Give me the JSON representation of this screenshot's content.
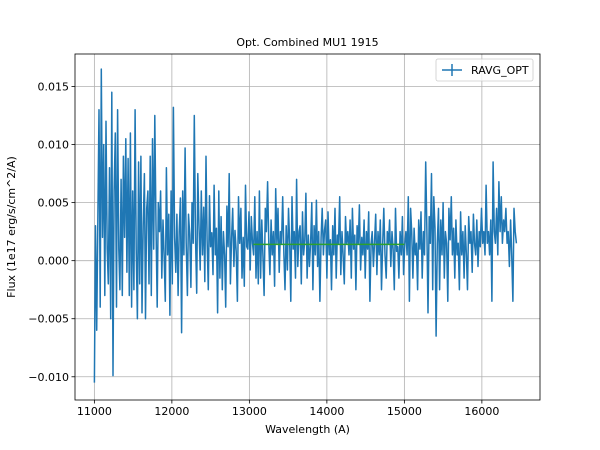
{
  "chart_data": {
    "type": "line",
    "title": "Opt. Combined MU1 1915",
    "xlabel": "Wavelength (A)",
    "ylabel": "Flux (1e17 erg/s/cm^2/A)",
    "xlim": [
      10750,
      16750
    ],
    "ylim": [
      -0.012,
      0.0178
    ],
    "xticks": [
      11000,
      12000,
      13000,
      14000,
      15000,
      16000
    ],
    "xtick_labels": [
      "11000",
      "12000",
      "13000",
      "14000",
      "15000",
      "16000"
    ],
    "yticks": [
      -0.01,
      -0.005,
      0.0,
      0.005,
      0.01,
      0.015
    ],
    "ytick_labels": [
      "−0.010",
      "−0.005",
      "0.000",
      "0.005",
      "0.010",
      "0.015"
    ],
    "grid": true,
    "legend_position": "top-right",
    "series": [
      {
        "name": "RAVG_OPT",
        "color": "#1f77b4",
        "style": "errorbar-line",
        "x_start": 11000,
        "x_step": 15,
        "y": [
          -0.0105,
          0.003,
          -0.006,
          0.004,
          0.013,
          -0.004,
          0.0165,
          0.002,
          0.01,
          -0.003,
          0.012,
          0.001,
          -0.002,
          0.008,
          -0.005,
          0.0145,
          -0.0099,
          0.006,
          0.011,
          -0.004,
          0.013,
          0.001,
          -0.0025,
          0.007,
          -0.003,
          0.009,
          0.002,
          0.0105,
          -0.001,
          0.0088,
          -0.003,
          0.011,
          -0.004,
          0.006,
          -0.0025,
          0.013,
          0.001,
          -0.005,
          0.0085,
          -0.002,
          0.009,
          -0.0045,
          0.003,
          0.0075,
          -0.005,
          0.0045,
          0.006,
          -0.002,
          0.009,
          -0.003,
          0.0105,
          0.001,
          0.0125,
          0.003,
          -0.004,
          0.005,
          0.0025,
          0.006,
          -0.0015,
          0.0035,
          0.0005,
          -0.0035,
          0.008,
          0.0005,
          0.004,
          -0.0047,
          0.006,
          -0.002,
          0.0132,
          0.002,
          -0.001,
          0.004,
          -0.003,
          0.0025,
          0.0054,
          -0.0062,
          0.006,
          0.0005,
          0.0097,
          0.0015,
          -0.003,
          0.004,
          0.0023,
          -0.0023,
          0.005,
          0.0015,
          0.0125,
          0.002,
          -0.0028,
          0.0075,
          0.003,
          -0.0008,
          0.006,
          0.0005,
          0.0046,
          -0.0018,
          0.009,
          0.0018,
          -0.0025,
          0.0056,
          0.0012,
          0.0024,
          -0.0012,
          0.0065,
          0.0005,
          0.0028,
          -0.0045,
          0.006,
          -0.0015,
          0.0038,
          -0.0025,
          0.0025,
          0.0005,
          -0.004,
          0.0047,
          0.0012,
          0.0075,
          -0.002,
          0.002,
          0.0045,
          -0.0005,
          0.0026,
          0.0008,
          -0.0035,
          0.0055,
          0.0015,
          0.0045,
          -0.0015,
          0.002,
          -0.0022,
          0.0065,
          0.0012,
          0.001,
          0.0042,
          -0.0008,
          0.0038,
          0.0015,
          0.0005,
          0.0055,
          -0.0015,
          0.0025,
          -0.002,
          0.006,
          -0.0015,
          0.0035,
          0.0005,
          -0.003,
          0.0045,
          0.0025,
          0.0068,
          0.0015,
          -0.0012,
          0.0035,
          0.0005,
          0.0025,
          -0.0022,
          0.0062,
          0.0015,
          0.0045,
          -0.001,
          0.0025,
          0.0015,
          0.0055,
          0.0005,
          -0.0025,
          0.003,
          -0.0008,
          0.0045,
          0.0015,
          -0.0035,
          0.0055,
          0.001,
          0.0025,
          -0.0015,
          0.007,
          -0.0005,
          0.0025,
          0.003,
          -0.002,
          0.0042,
          0.0005,
          0.0018,
          0.0058,
          -0.0015,
          0.0022,
          -0.0005,
          0.0015,
          0.005,
          -0.0025,
          0.003,
          0.0005,
          0.0052,
          -0.0005,
          0.0025,
          -0.0035,
          0.002,
          0.0045,
          0.0005,
          0.0026,
          0.0035,
          -0.0015,
          0.0042,
          0.0005,
          0.0018,
          -0.0025,
          0.003,
          0.0005,
          0.0045,
          -0.0015,
          0.0022,
          0.0015,
          0.0055,
          -0.0012,
          0.0025,
          0.0005,
          -0.002,
          0.0038,
          0.0015,
          0.0025,
          0.0005,
          0.0035,
          -0.0015,
          0.0045,
          0.001,
          0.0022,
          -0.0025,
          0.003,
          0.0015,
          0.0048,
          -0.0008,
          0.002,
          0.0005,
          0.0035,
          -0.0015,
          0.0025,
          0.001,
          0.0042,
          -0.0035,
          0.0015,
          0.0025,
          -0.0005,
          0.0015,
          0.004,
          -0.0012,
          0.0025,
          0.0005,
          0.0035,
          -0.0025,
          0.0015,
          0.0045,
          0.0005,
          -0.0015,
          0.0025,
          0.0015,
          0.0035,
          -0.0005,
          0.0025,
          0.001,
          -0.0025,
          0.0045,
          0.0008,
          0.0012,
          -0.0015,
          0.0025,
          0.0005,
          0.0038,
          -0.0012,
          0.0015,
          0.0025,
          0.0005,
          0.0055,
          -0.0035,
          0.0045,
          0.0025,
          -0.0015,
          0.0028,
          0.0005,
          0.0015,
          -0.0025,
          0.0035,
          0.001,
          0.0042,
          -0.0015,
          0.0025,
          0.0005,
          0.0085,
          0.0025,
          -0.0045,
          0.0038,
          0.0015,
          0.0075,
          -0.0025,
          0.0055,
          0.0028,
          -0.0065,
          0.0015,
          0.0045,
          -0.0025,
          0.0035,
          0.0005,
          0.005,
          -0.0015,
          0.0025,
          0.0015,
          -0.0035,
          0.0045,
          0.0018,
          0.0055,
          0.0005,
          0.0028,
          -0.0015,
          0.0035,
          0.0005,
          0.0015,
          -0.0025,
          0.0042,
          0.0005,
          0.0025,
          -0.0015,
          0.003,
          0.0005,
          -0.0025,
          0.0038,
          0.0015,
          0.0025,
          -0.001,
          0.004,
          0.0015,
          0.0005,
          0.0035,
          -0.0005,
          0.0025,
          0.0012,
          0.0045,
          0.0015,
          0.0025,
          0.0005,
          0.0065,
          0.0015,
          0.0025,
          0.0005,
          0.0035,
          -0.0035,
          0.0085,
          0.0025,
          0.0015,
          0.0045,
          0.0005,
          0.0068,
          0.0025,
          0.0055,
          0.0015,
          0.0035,
          0.0025,
          0.0045,
          0.0015,
          0.0025,
          -0.0005,
          0.0035,
          0.0005,
          -0.0035,
          0.0045,
          0.0025,
          0.0015
        ]
      },
      {
        "name": "",
        "color": "#2ca02c",
        "style": "line",
        "x": [
          13050,
          15000
        ],
        "y": [
          0.0014,
          0.0014
        ]
      }
    ]
  }
}
